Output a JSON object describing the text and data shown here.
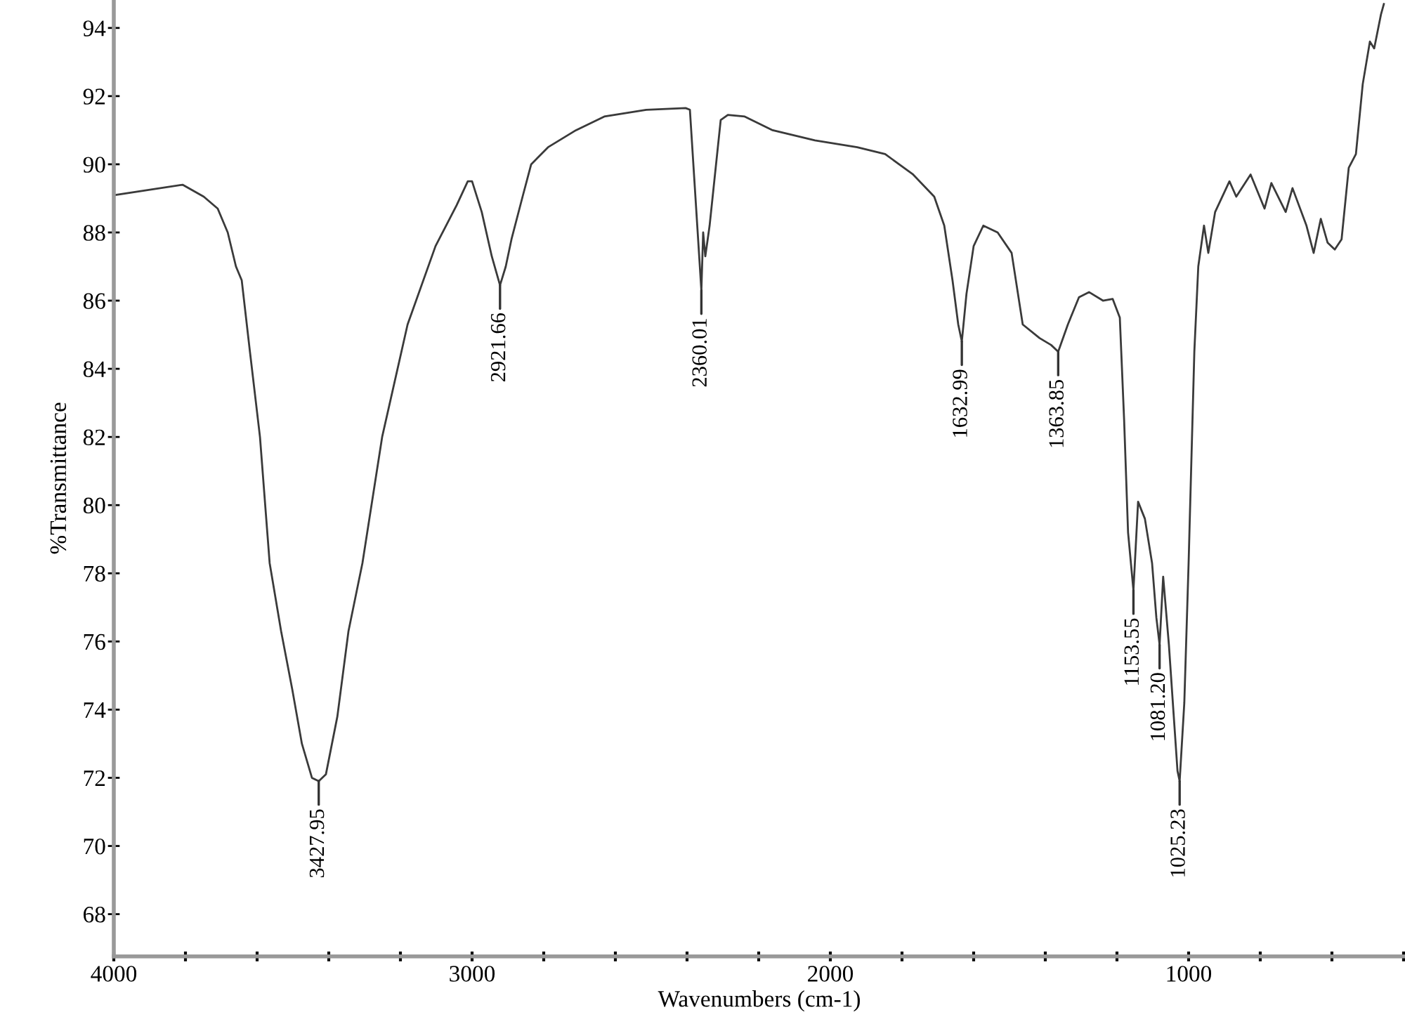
{
  "chart_data": {
    "type": "line",
    "xlabel": "Wavenumbers (cm-1)",
    "ylabel": "%Transmittance",
    "xlim": [
      4000,
      396
    ],
    "ylim": [
      66.76,
      94.82
    ],
    "xticks": [
      4000,
      {
        "value": 3800,
        "label": null
      },
      {
        "value": 3600,
        "label": null
      },
      {
        "value": 3400,
        "label": null
      },
      {
        "value": 3200,
        "label": null
      },
      3000,
      {
        "value": 2800,
        "label": null
      },
      {
        "value": 2600,
        "label": null
      },
      {
        "value": 2400,
        "label": null
      },
      {
        "value": 2200,
        "label": null
      },
      2000,
      {
        "value": 1800,
        "label": null
      },
      {
        "value": 1600,
        "label": null
      },
      {
        "value": 1400,
        "label": null
      },
      {
        "value": 1200,
        "label": null
      },
      1000,
      {
        "value": 800,
        "label": null
      },
      {
        "value": 600,
        "label": null
      },
      {
        "value": 400,
        "label": null
      }
    ],
    "yticks": [
      68,
      70,
      72,
      74,
      76,
      78,
      80,
      82,
      84,
      86,
      88,
      90,
      92,
      94
    ],
    "grid": false,
    "legend": false,
    "marker": "none",
    "line_style": "solid",
    "series": [
      {
        "color": "#3a3a3a",
        "x": [
          3996,
          3808,
          3749,
          3710,
          3682,
          3659,
          3643,
          3620,
          3592,
          3565,
          3533,
          3502,
          3475,
          3447,
          3428,
          3408,
          3376,
          3345,
          3306,
          3251,
          3180,
          3102,
          3043,
          3012,
          3000,
          2973,
          2945,
          2922,
          2906,
          2890,
          2859,
          2835,
          2788,
          2710,
          2631,
          2514,
          2404,
          2392,
          2360,
          2355,
          2349,
          2337,
          2306,
          2286,
          2239,
          2161,
          2043,
          1925,
          1847,
          1769,
          1710,
          1682,
          1659,
          1643,
          1633,
          1620,
          1600,
          1573,
          1533,
          1494,
          1463,
          1416,
          1384,
          1364,
          1337,
          1306,
          1278,
          1239,
          1212,
          1192,
          1180,
          1169,
          1154,
          1141,
          1122,
          1102,
          1090,
          1081,
          1071,
          1055,
          1031,
          1025,
          1012,
          1000,
          984,
          973,
          957,
          945,
          926,
          886,
          867,
          827,
          788,
          769,
          729,
          710,
          671,
          651,
          631,
          612,
          592,
          573,
          553,
          533,
          514,
          494,
          482,
          463,
          455
        ],
        "values": [
          89.1,
          89.4,
          89.05,
          88.7,
          88.0,
          87.0,
          86.6,
          84.5,
          82.0,
          78.3,
          76.3,
          74.6,
          73.0,
          72.0,
          71.9,
          72.1,
          73.8,
          76.3,
          78.3,
          82.0,
          85.3,
          87.6,
          88.8,
          89.5,
          89.5,
          88.6,
          87.3,
          86.45,
          87.0,
          87.8,
          89.05,
          90.0,
          90.5,
          91.0,
          91.4,
          91.6,
          91.65,
          91.6,
          86.3,
          88.0,
          87.3,
          88.2,
          91.3,
          91.45,
          91.4,
          91.0,
          90.7,
          90.5,
          90.3,
          89.7,
          89.05,
          88.2,
          86.6,
          85.3,
          84.8,
          86.2,
          87.6,
          88.2,
          88.0,
          87.4,
          85.3,
          84.9,
          84.7,
          84.5,
          85.3,
          86.1,
          86.25,
          86.0,
          86.05,
          85.5,
          82.5,
          79.2,
          77.5,
          80.1,
          79.6,
          78.3,
          76.7,
          75.9,
          77.9,
          75.9,
          72.2,
          71.9,
          74.2,
          78.3,
          84.5,
          87.0,
          88.2,
          87.4,
          88.6,
          89.5,
          89.05,
          89.7,
          88.7,
          89.45,
          88.6,
          89.3,
          88.2,
          87.4,
          88.4,
          87.7,
          87.5,
          87.8,
          89.9,
          90.3,
          92.35,
          93.6,
          93.4,
          94.4,
          94.7
        ]
      }
    ],
    "annotations": [
      {
        "text": "3427.95",
        "x": 3428,
        "y": 71.9
      },
      {
        "text": "2921.66",
        "x": 2922,
        "y": 86.45
      },
      {
        "text": "2360.01",
        "x": 2360,
        "y": 86.3
      },
      {
        "text": "1632.99",
        "x": 1633,
        "y": 84.8
      },
      {
        "text": "1363.85",
        "x": 1364,
        "y": 84.5
      },
      {
        "text": "1153.55",
        "x": 1154,
        "y": 77.5
      },
      {
        "text": "1081.20",
        "x": 1081,
        "y": 75.9
      },
      {
        "text": "1025.23",
        "x": 1025,
        "y": 71.9
      }
    ]
  }
}
